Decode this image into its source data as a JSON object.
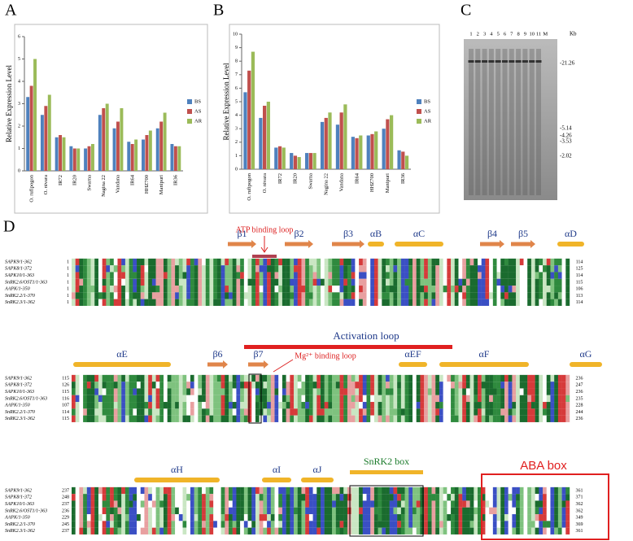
{
  "panels": {
    "A": "A",
    "B": "B",
    "C": "C",
    "D": "D"
  },
  "charts": [
    {
      "type": "bar",
      "ylabel": "Relative Expression Level",
      "categories": [
        "O. rufipogon",
        "O. nivara",
        "IR72",
        "IR20",
        "Swarna",
        "Nagina 22",
        "Vandana",
        "IR64",
        "HHZ700",
        "Manipuri",
        "IR36"
      ],
      "series": [
        {
          "name": "BS",
          "color": "#4f81bd",
          "values": [
            3.3,
            2.5,
            1.5,
            1.1,
            1.0,
            2.5,
            1.9,
            1.3,
            1.4,
            1.9,
            1.2
          ]
        },
        {
          "name": "AS",
          "color": "#c0504d",
          "values": [
            3.8,
            2.9,
            1.6,
            1.0,
            1.1,
            2.8,
            2.2,
            1.2,
            1.6,
            2.2,
            1.1
          ]
        },
        {
          "name": "AR",
          "color": "#9bbb59",
          "values": [
            5.0,
            3.4,
            1.5,
            1.0,
            1.2,
            3.0,
            2.8,
            1.4,
            1.8,
            2.6,
            1.1
          ]
        }
      ],
      "ylim": [
        0,
        6
      ],
      "yticks": [
        0,
        1,
        2,
        3,
        4,
        5,
        6
      ]
    },
    {
      "type": "bar",
      "ylabel": "Relative Expression Level",
      "categories": [
        "O. rufipogon",
        "O. nivara",
        "IR72",
        "IR20",
        "Swarna",
        "Nagina 22",
        "Vandana",
        "IR64",
        "HHZ700",
        "Manipuri",
        "IR36"
      ],
      "series": [
        {
          "name": "BS",
          "color": "#4f81bd",
          "values": [
            5.7,
            3.8,
            1.6,
            1.2,
            1.2,
            3.5,
            3.3,
            2.4,
            2.5,
            3.0,
            1.4
          ]
        },
        {
          "name": "AS",
          "color": "#c0504d",
          "values": [
            7.3,
            4.7,
            1.7,
            1.0,
            1.2,
            3.8,
            4.2,
            2.3,
            2.6,
            3.7,
            1.3
          ]
        },
        {
          "name": "AR",
          "color": "#9bbb59",
          "values": [
            8.7,
            5.0,
            1.6,
            0.9,
            1.2,
            4.2,
            4.8,
            2.5,
            2.8,
            4.0,
            1.0
          ]
        }
      ],
      "ylim": [
        0,
        10
      ],
      "yticks": [
        0,
        1,
        2,
        3,
        4,
        5,
        6,
        7,
        8,
        9,
        10
      ]
    }
  ],
  "gel": {
    "lanes": [
      "1",
      "2",
      "3",
      "4",
      "5",
      "6",
      "7",
      "8",
      "9",
      "10",
      "11",
      "M"
    ],
    "unit": "Kb",
    "markers": [
      "-21.26",
      "-5.14",
      "-4.26",
      "-3.53",
      "-2.02"
    ]
  },
  "alignment": {
    "names": [
      "SAPK9/1-362",
      "SAPK8/1-372",
      "SAPK10/1-363",
      "SnRK2.6/OST1/1-363",
      "AAPK/1-350",
      "SnRK2.2/1-370",
      "SnRK2.3/1-362"
    ],
    "blocks": [
      {
        "start": [
          "1",
          "1",
          "1",
          "1",
          "1",
          "1",
          "1"
        ],
        "end": [
          "114",
          "125",
          "114",
          "115",
          "106",
          "113",
          "114"
        ],
        "ss": [
          "β1",
          "β2",
          "β3",
          "αB",
          "αC",
          "β4",
          "β5",
          "αD"
        ],
        "motifs": [
          "ATP binding loop"
        ]
      },
      {
        "start": [
          "115",
          "126",
          "115",
          "116",
          "107",
          "114",
          "115"
        ],
        "end": [
          "236",
          "247",
          "236",
          "235",
          "228",
          "244",
          "236"
        ],
        "ss": [
          "αE",
          "β6",
          "β7",
          "αEF",
          "αF",
          "αG"
        ],
        "motifs": [
          "Activation loop",
          "Mg²⁺ binding loop"
        ]
      },
      {
        "start": [
          "237",
          "248",
          "237",
          "236",
          "229",
          "245",
          "237"
        ],
        "end": [
          "361",
          "371",
          "362",
          "362",
          "349",
          "369",
          "361"
        ],
        "ss": [
          "αH",
          "αI",
          "αJ"
        ],
        "motifs": [
          "SnRK2 box",
          "ABA box"
        ]
      }
    ]
  }
}
